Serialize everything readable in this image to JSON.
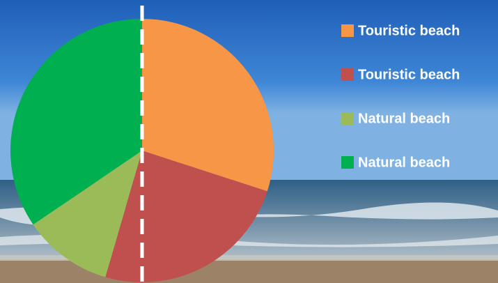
{
  "chart_data": {
    "type": "pie",
    "categories": [
      "Touristic beach",
      "Touristic beach",
      "Natural beach",
      "Natural beach"
    ],
    "values": [
      30,
      24.5,
      11,
      34.5
    ],
    "colors": [
      "#f79646",
      "#c0504d",
      "#9bbb59",
      "#00b050"
    ]
  }
}
